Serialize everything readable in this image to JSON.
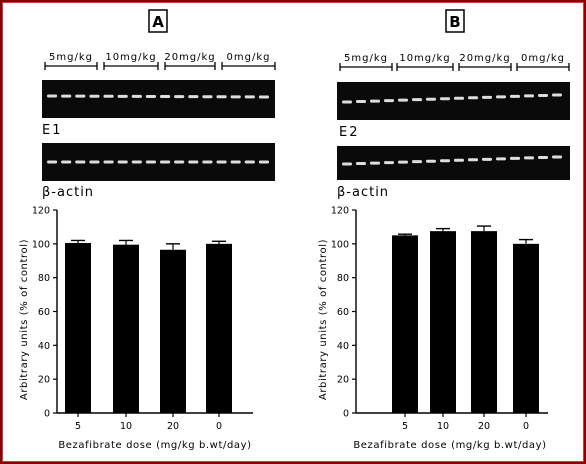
{
  "panels": [
    {
      "letter": "A",
      "doses": [
        "5mg/kg",
        "10mg/kg",
        "20mg/kg",
        "0mg/kg"
      ],
      "gene_label": "E1",
      "actin_label": "β-actin"
    },
    {
      "letter": "B",
      "doses": [
        "5mg/kg",
        "10mg/kg",
        "20mg/kg",
        "0mg/kg"
      ],
      "gene_label": "E2",
      "actin_label": "β-actin"
    }
  ],
  "colors": {
    "frame": "#8b0000",
    "bar": "#000000",
    "gel": "#0a0a0a",
    "band": "#f0f0f0"
  },
  "chart_data": [
    {
      "type": "bar",
      "categories": [
        "5",
        "10",
        "20",
        "0"
      ],
      "values": [
        100.5,
        99.5,
        96.5,
        100
      ],
      "errors": [
        1.5,
        2.5,
        3.5,
        1.5
      ],
      "title": "",
      "xlabel": "Bezafibrate dose (mg/kg b.wt/day)",
      "ylabel": "Arbitrary units (% of control)",
      "ylim": [
        0,
        120
      ],
      "yticks": [
        0,
        20,
        40,
        60,
        80,
        100,
        120
      ],
      "grid": false
    },
    {
      "type": "bar",
      "categories": [
        "5",
        "10",
        "20",
        "0"
      ],
      "values": [
        105,
        107.5,
        107.5,
        100
      ],
      "errors": [
        0.7,
        1.5,
        3,
        2.5
      ],
      "title": "",
      "xlabel": "Bezafibrate dose (mg/kg b.wt/day)",
      "ylabel": "Arbitrary units (% of control)",
      "ylim": [
        0,
        120
      ],
      "yticks": [
        0,
        20,
        40,
        60,
        80,
        100,
        120
      ],
      "grid": false
    }
  ]
}
